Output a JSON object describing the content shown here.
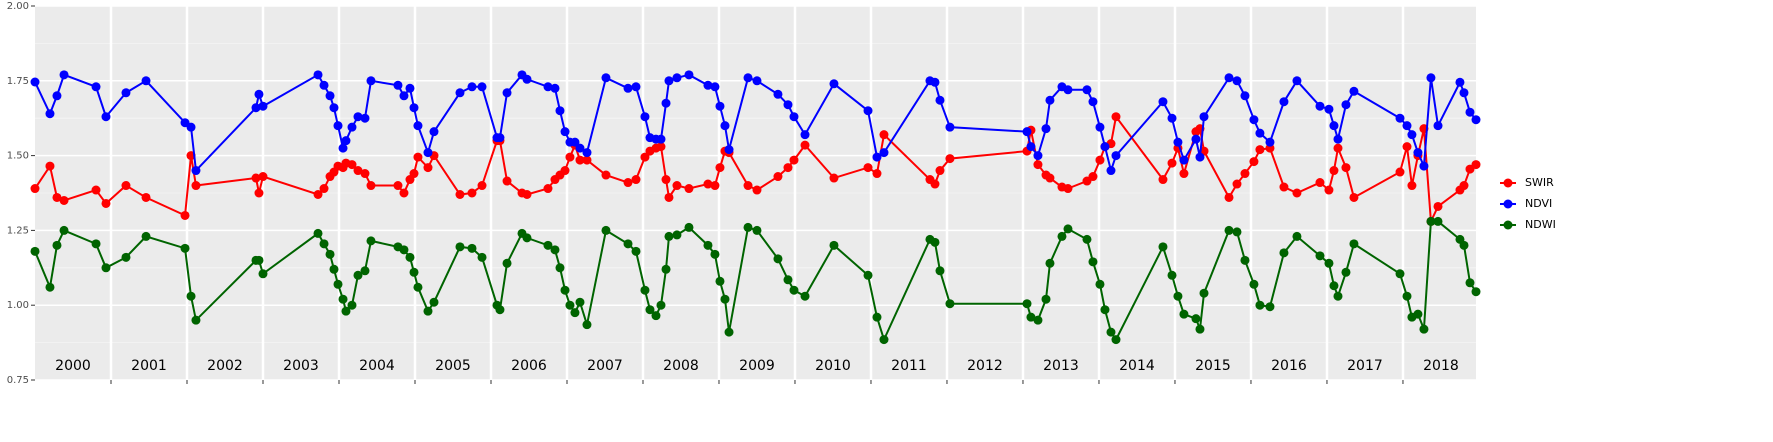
{
  "chart_data": {
    "type": "line",
    "x": [
      2000.0,
      2000.197,
      2000.289,
      2000.382,
      2000.803,
      2000.934,
      2001.197,
      2001.461,
      2001.974,
      2002.053,
      2002.118,
      2002.908,
      2002.947,
      2003.0,
      2003.724,
      2003.803,
      2003.882,
      2003.934,
      2003.987,
      2004.053,
      2004.092,
      2004.171,
      2004.25,
      2004.342,
      2004.421,
      2004.776,
      2004.855,
      2004.934,
      2004.987,
      2005.039,
      2005.171,
      2005.25,
      2005.592,
      2005.75,
      2005.882,
      2006.079,
      2006.118,
      2006.211,
      2006.408,
      2006.474,
      2006.75,
      2006.842,
      2006.908,
      2006.974,
      2007.039,
      2007.105,
      2007.171,
      2007.263,
      2007.513,
      2007.803,
      2007.908,
      2008.026,
      2008.092,
      2008.171,
      2008.237,
      2008.303,
      2008.342,
      2008.447,
      2008.605,
      2008.855,
      2008.947,
      2009.013,
      2009.079,
      2009.132,
      2009.382,
      2009.5,
      2009.776,
      2009.908,
      2009.987,
      2010.132,
      2010.513,
      2010.961,
      2011.079,
      2011.171,
      2011.776,
      2011.842,
      2011.908,
      2012.039,
      2013.053,
      2013.105,
      2013.197,
      2013.303,
      2013.355,
      2013.513,
      2013.592,
      2013.842,
      2013.921,
      2014.013,
      2014.079,
      2014.158,
      2014.224,
      2014.842,
      2014.961,
      2015.039,
      2015.118,
      2015.276,
      2015.329,
      2015.382,
      2015.711,
      2015.816,
      2015.921,
      2016.039,
      2016.118,
      2016.25,
      2016.434,
      2016.605,
      2016.908,
      2017.026,
      2017.092,
      2017.145,
      2017.25,
      2017.355,
      2017.961,
      2018.053,
      2018.118,
      2018.197,
      2018.276,
      2018.368,
      2018.461,
      2018.75,
      2018.803,
      2018.882,
      2018.961
    ],
    "series": [
      {
        "name": "SWIR",
        "color": "#ff0000",
        "values": [
          1.39,
          1.465,
          1.36,
          1.35,
          1.385,
          1.34,
          1.4,
          1.36,
          1.3,
          1.5,
          1.4,
          1.425,
          1.375,
          1.43,
          1.37,
          1.39,
          1.43,
          1.445,
          1.465,
          1.46,
          1.475,
          1.47,
          1.45,
          1.44,
          1.4,
          1.4,
          1.375,
          1.42,
          1.44,
          1.495,
          1.46,
          1.5,
          1.37,
          1.375,
          1.4,
          1.55,
          1.55,
          1.415,
          1.375,
          1.37,
          1.39,
          1.42,
          1.435,
          1.45,
          1.495,
          1.535,
          1.485,
          1.485,
          1.435,
          1.41,
          1.42,
          1.495,
          1.515,
          1.525,
          1.53,
          1.42,
          1.36,
          1.4,
          1.39,
          1.405,
          1.4,
          1.46,
          1.515,
          1.51,
          1.4,
          1.385,
          1.43,
          1.46,
          1.485,
          1.535,
          1.425,
          1.46,
          1.44,
          1.57,
          1.42,
          1.405,
          1.45,
          1.49,
          1.515,
          1.585,
          1.47,
          1.435,
          1.425,
          1.395,
          1.39,
          1.415,
          1.43,
          1.485,
          1.53,
          1.54,
          1.63,
          1.42,
          1.475,
          1.525,
          1.44,
          1.58,
          1.59,
          1.515,
          1.36,
          1.405,
          1.44,
          1.48,
          1.52,
          1.525,
          1.395,
          1.375,
          1.41,
          1.385,
          1.45,
          1.525,
          1.46,
          1.36,
          1.445,
          1.53,
          1.4,
          1.5,
          1.59,
          1.28,
          1.33,
          1.385,
          1.4,
          1.455,
          1.47
        ]
      },
      {
        "name": "NDVI",
        "color": "#0000ff",
        "values": [
          1.746,
          1.64,
          1.7,
          1.77,
          1.73,
          1.63,
          1.71,
          1.75,
          1.61,
          1.595,
          1.45,
          1.66,
          1.705,
          1.665,
          1.77,
          1.735,
          1.7,
          1.66,
          1.6,
          1.525,
          1.55,
          1.595,
          1.63,
          1.625,
          1.75,
          1.735,
          1.7,
          1.725,
          1.66,
          1.6,
          1.51,
          1.58,
          1.71,
          1.73,
          1.73,
          1.56,
          1.56,
          1.71,
          1.77,
          1.755,
          1.73,
          1.725,
          1.65,
          1.58,
          1.545,
          1.545,
          1.525,
          1.51,
          1.76,
          1.725,
          1.73,
          1.63,
          1.56,
          1.555,
          1.555,
          1.675,
          1.75,
          1.76,
          1.77,
          1.735,
          1.73,
          1.665,
          1.6,
          1.52,
          1.76,
          1.75,
          1.705,
          1.67,
          1.63,
          1.57,
          1.74,
          1.65,
          1.495,
          1.51,
          1.75,
          1.745,
          1.685,
          1.595,
          1.58,
          1.53,
          1.5,
          1.59,
          1.685,
          1.73,
          1.72,
          1.72,
          1.68,
          1.595,
          1.53,
          1.45,
          1.5,
          1.68,
          1.625,
          1.545,
          1.485,
          1.555,
          1.495,
          1.63,
          1.76,
          1.75,
          1.7,
          1.62,
          1.575,
          1.545,
          1.68,
          1.75,
          1.665,
          1.655,
          1.6,
          1.555,
          1.67,
          1.715,
          1.625,
          1.6,
          1.57,
          1.51,
          1.465,
          1.76,
          1.6,
          1.745,
          1.71,
          1.645,
          1.62
        ]
      },
      {
        "name": "NDWI",
        "color": "#006400",
        "values": [
          1.18,
          1.06,
          1.2,
          1.25,
          1.205,
          1.125,
          1.16,
          1.23,
          1.19,
          1.03,
          0.95,
          1.15,
          1.15,
          1.105,
          1.24,
          1.205,
          1.17,
          1.12,
          1.07,
          1.02,
          0.98,
          1.0,
          1.1,
          1.115,
          1.215,
          1.195,
          1.185,
          1.16,
          1.11,
          1.06,
          0.98,
          1.01,
          1.195,
          1.19,
          1.16,
          1.0,
          0.985,
          1.14,
          1.24,
          1.225,
          1.2,
          1.185,
          1.125,
          1.05,
          1.0,
          0.975,
          1.01,
          0.935,
          1.25,
          1.205,
          1.18,
          1.05,
          0.985,
          0.965,
          1.0,
          1.12,
          1.23,
          1.235,
          1.26,
          1.2,
          1.17,
          1.08,
          1.02,
          0.91,
          1.26,
          1.25,
          1.155,
          1.085,
          1.05,
          1.03,
          1.2,
          1.1,
          0.96,
          0.885,
          1.22,
          1.21,
          1.115,
          1.005,
          1.005,
          0.96,
          0.95,
          1.02,
          1.14,
          1.23,
          1.255,
          1.22,
          1.145,
          1.07,
          0.985,
          0.91,
          0.885,
          1.195,
          1.1,
          1.03,
          0.97,
          0.955,
          0.92,
          1.04,
          1.25,
          1.245,
          1.15,
          1.07,
          1.0,
          0.995,
          1.175,
          1.23,
          1.165,
          1.14,
          1.065,
          1.03,
          1.11,
          1.205,
          1.105,
          1.03,
          0.96,
          0.97,
          0.92,
          1.28,
          1.28,
          1.22,
          1.2,
          1.075,
          1.045
        ]
      }
    ],
    "xlim": [
      2000,
      2018.961
    ],
    "xticks": [
      2001,
      2002,
      2003,
      2004,
      2005,
      2006,
      2007,
      2008,
      2009,
      2010,
      2011,
      2012,
      2013,
      2014,
      2015,
      2016,
      2017,
      2018
    ],
    "panels": [
      "2000",
      "2001",
      "2002",
      "2003",
      "2004",
      "2005",
      "2006",
      "2007",
      "2008",
      "2009",
      "2010",
      "2011",
      "2012",
      "2013",
      "2014",
      "2015",
      "2016",
      "2017",
      "2018"
    ],
    "ylim": [
      0.75,
      2.0
    ],
    "yticks": [
      {
        "value": 0.75,
        "label": "0.75"
      },
      {
        "value": 1.0,
        "label": "1.00"
      },
      {
        "value": 1.25,
        "label": "1.25"
      },
      {
        "value": 1.5,
        "label": "1.50"
      },
      {
        "value": 1.75,
        "label": "1.75"
      },
      {
        "value": 2.0,
        "label": "2.00"
      }
    ],
    "grid": true,
    "legend": "right"
  }
}
